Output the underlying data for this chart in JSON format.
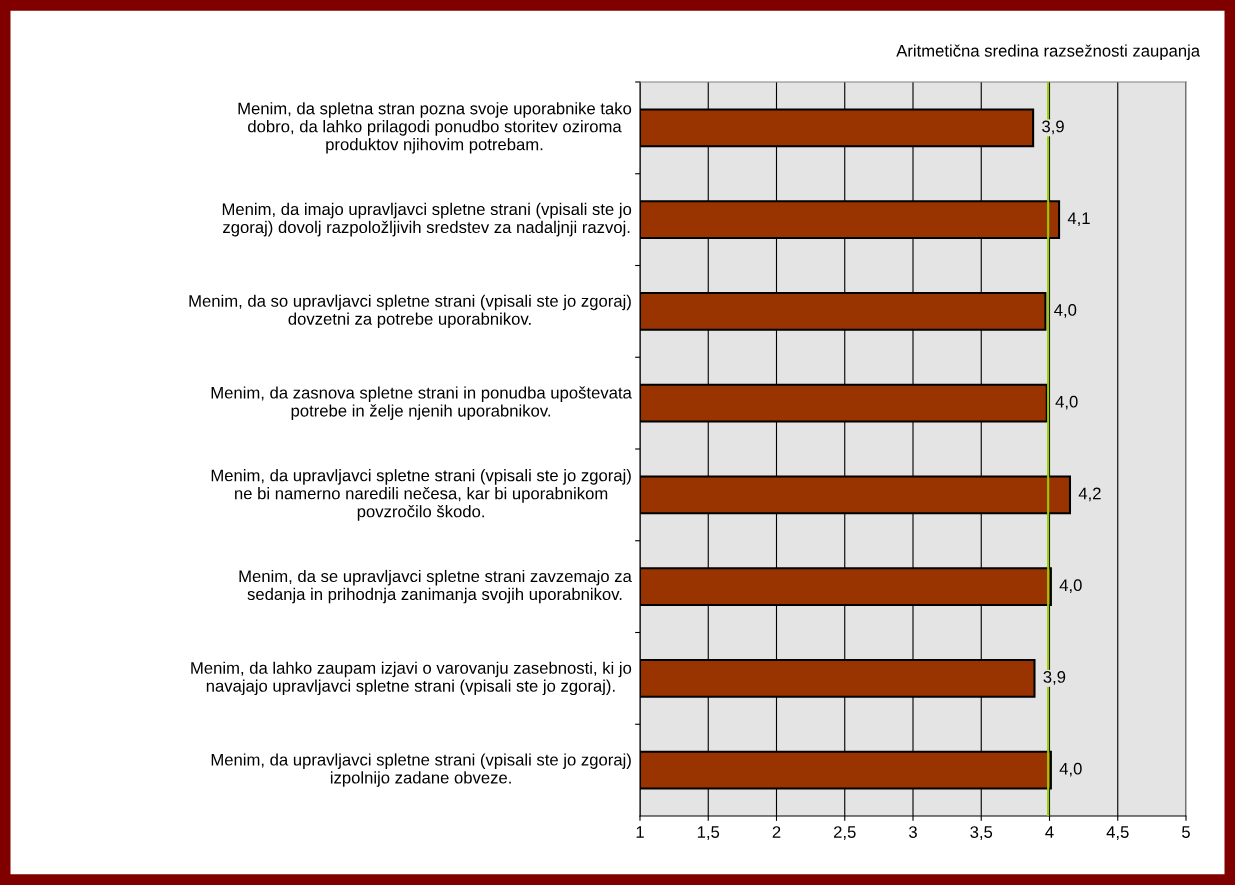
{
  "chart_data": {
    "type": "bar",
    "orientation": "horizontal",
    "categories": [
      "Menim, da spletna stran pozna svoje uporabnike tako\ndobro, da lahko prilagodi ponudbo storitev oziroma\nproduktov njihovim potrebam.",
      "Menim, da imajo upravljavci spletne strani (vpisali ste jo\nzgoraj) dovolj razpoložljivih sredstev za nadaljnji razvoj.",
      "Menim, da so upravljavci spletne strani (vpisali ste jo zgoraj)\ndovzetni za potrebe uporabnikov.",
      "Menim, da zasnova spletne strani in ponudba upoštevata\npotrebe in želje njenih uporabnikov.",
      "Menim, da upravljavci spletne strani (vpisali ste jo zgoraj)\nne bi namerno naredili nečesa, kar bi uporabnikom\npovzročilo škodo.",
      "Menim, da se upravljavci spletne strani zavzemajo za\nsedanja in prihodnja zanimanja svojih uporabnikov.",
      "Menim, da lahko zaupam izjavi o varovanju zasebnosti, ki jo\nnavajajo upravljavci spletne strani (vpisali ste jo zgoraj).",
      "Menim, da upravljavci spletne strani (vpisali ste jo zgoraj)\nizpolnijo zadane obveze."
    ],
    "values": [
      3.88,
      4.07,
      3.97,
      3.98,
      4.15,
      4.01,
      3.89,
      4.01
    ],
    "value_labels": [
      "3,9",
      "4,1",
      "4,0",
      "4,0",
      "4,2",
      "4,0",
      "3,9",
      "4,0"
    ],
    "color": "#993300",
    "xlim": [
      1,
      5
    ],
    "xticks": [
      1,
      {
        "value": 1.5,
        "label": "1,5"
      },
      2,
      {
        "value": 2.5,
        "label": "2,5"
      },
      3,
      {
        "value": 3.5,
        "label": "3,5"
      },
      4,
      {
        "value": 4.5,
        "label": "4,5"
      },
      5
    ],
    "grid": "x",
    "ref_lines": [
      {
        "axis": "x",
        "value": 3.99,
        "label": "Aritmetična sredina razsežnosti zaupanja",
        "color": "#99cc00"
      }
    ]
  }
}
